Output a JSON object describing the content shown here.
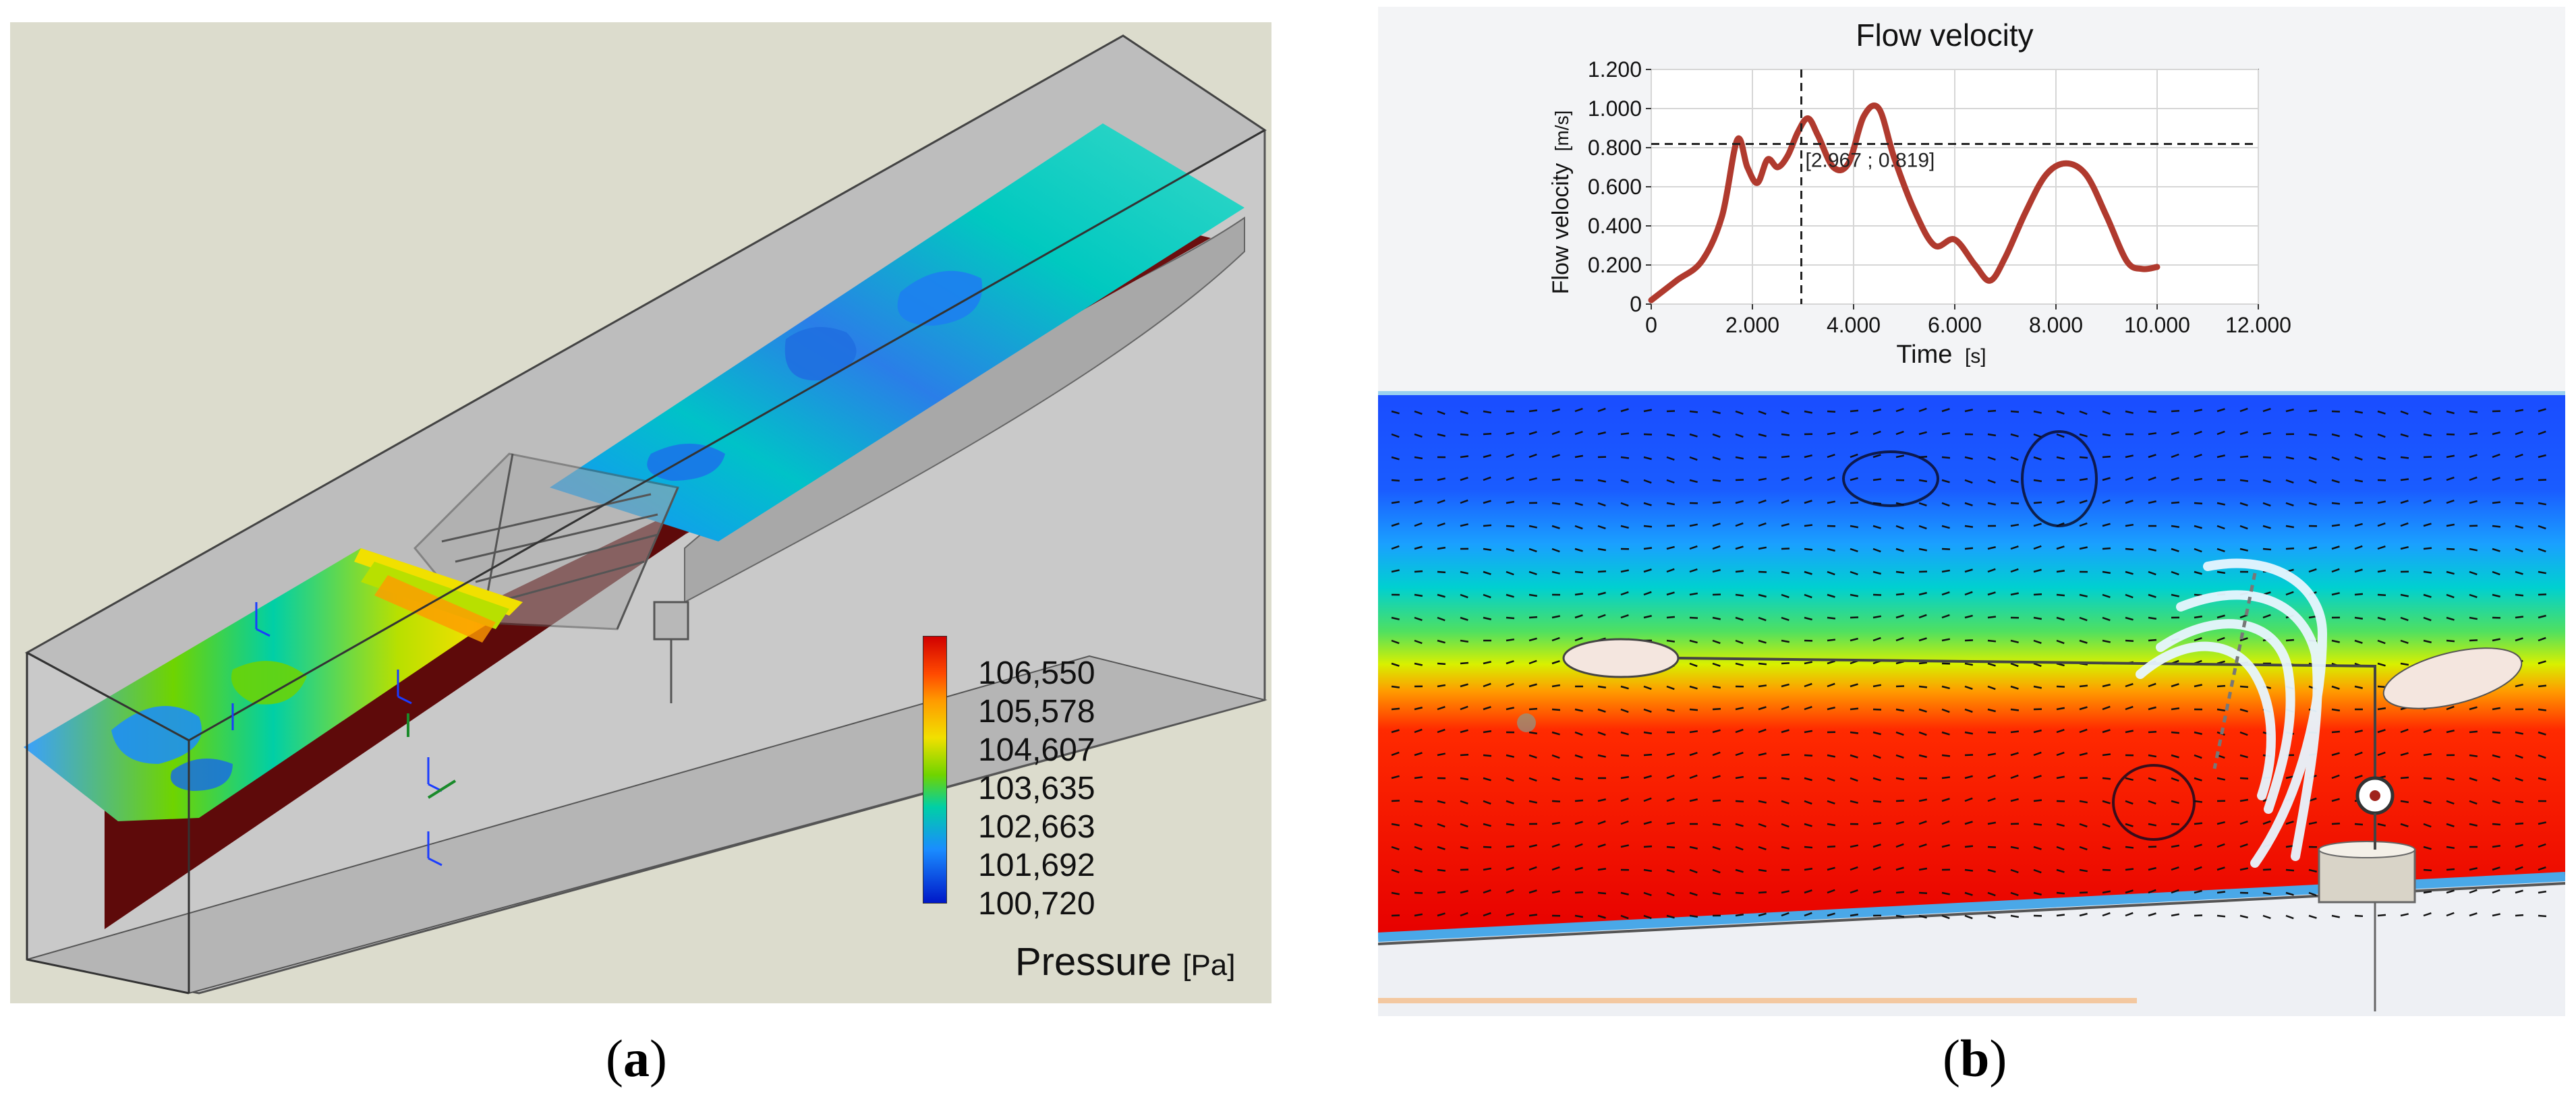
{
  "panel_a": {
    "caption_letter": "a",
    "legend": {
      "title": "Pressure",
      "unit": "[Pa]",
      "ticks": [
        "106,550",
        "105,578",
        "104,607",
        "103,635",
        "102,663",
        "101,692",
        "100,720"
      ],
      "colors": [
        "#d10000",
        "#ff6a00",
        "#f1e000",
        "#6fd400",
        "#00cfa6",
        "#1a8cff",
        "#0018c8"
      ]
    }
  },
  "panel_b": {
    "caption_letter": "b",
    "chart_data": {
      "type": "line",
      "title": "Flow velocity",
      "xlabel": "Time",
      "xunit": "[s]",
      "ylabel": "Flow velocity",
      "yunit": "[m/s]",
      "xlim": [
        0,
        12
      ],
      "ylim": [
        0,
        1.2
      ],
      "x_ticks": [
        "0",
        "2.000",
        "4.000",
        "6.000",
        "8.000",
        "10.000",
        "12.000"
      ],
      "y_ticks": [
        "0",
        "0.200",
        "0.400",
        "0.600",
        "0.800",
        "1.000",
        "1.200"
      ],
      "grid": true,
      "series": [
        {
          "color": "#b03a2e",
          "x": [
            0,
            0.5,
            1.0,
            1.4,
            1.7,
            1.9,
            2.1,
            2.3,
            2.5,
            2.7,
            2.9,
            3.1,
            3.3,
            3.6,
            3.9,
            4.2,
            4.5,
            4.8,
            5.2,
            5.6,
            6.0,
            6.4,
            6.7,
            7.0,
            7.4,
            7.8,
            8.2,
            8.6,
            9.0,
            9.4,
            9.7,
            10.0
          ],
          "y": [
            0.02,
            0.12,
            0.22,
            0.45,
            0.84,
            0.7,
            0.62,
            0.74,
            0.7,
            0.76,
            0.88,
            0.95,
            0.86,
            0.7,
            0.72,
            0.96,
            1.0,
            0.75,
            0.48,
            0.3,
            0.33,
            0.2,
            0.12,
            0.24,
            0.47,
            0.66,
            0.72,
            0.66,
            0.45,
            0.22,
            0.18,
            0.19
          ]
        }
      ],
      "cursor": {
        "x": 2.967,
        "y": 0.819,
        "label": "[2.967 ; 0.819]"
      }
    }
  }
}
